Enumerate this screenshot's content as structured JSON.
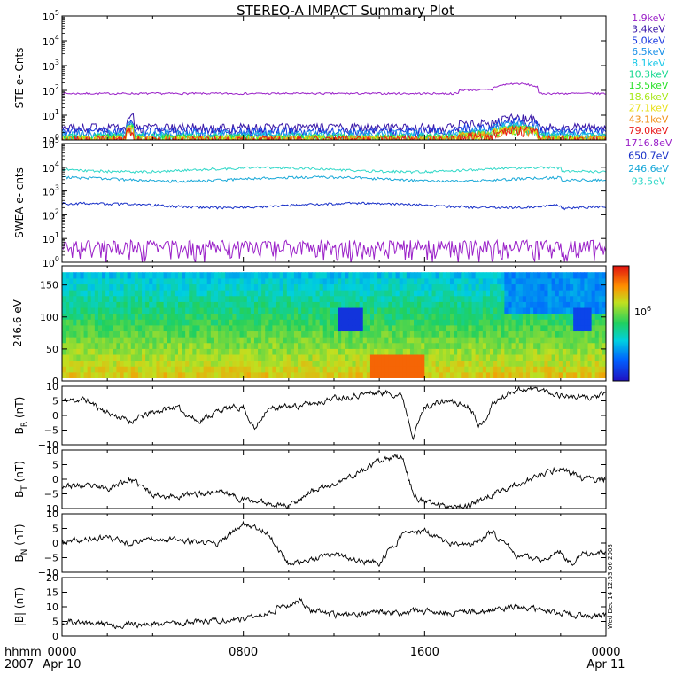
{
  "chart_data": {
    "type": "line",
    "title": "STEREO-A IMPACT Summary Plot",
    "footer": {
      "hhmm_label": "hhmm",
      "year_label": "2007",
      "stamp": "Wed Dec 14 12:53:06 2008"
    },
    "time_axis": {
      "range_hours": [
        0,
        24
      ],
      "ticks": [
        {
          "hour": 0,
          "label": "0000",
          "sublabel": "Apr 10"
        },
        {
          "hour": 8,
          "label": "0800",
          "sublabel": ""
        },
        {
          "hour": 16,
          "label": "1600",
          "sublabel": ""
        },
        {
          "hour": 24,
          "label": "0000",
          "sublabel": "Apr 11"
        }
      ]
    },
    "panels": [
      {
        "id": "ste",
        "type": "line",
        "ylabel": "STE e- Cnts",
        "scale": "log",
        "ylim": [
          1,
          100000
        ],
        "ticks": [
          {
            "v": 1,
            "base": "10",
            "exp": "0"
          },
          {
            "v": 10,
            "base": "10",
            "exp": "1"
          },
          {
            "v": 100,
            "base": "10",
            "exp": "2"
          },
          {
            "v": 1000,
            "base": "10",
            "exp": "3"
          },
          {
            "v": 10000,
            "base": "10",
            "exp": "4"
          },
          {
            "v": 100000,
            "base": "10",
            "exp": "5"
          }
        ],
        "series": [
          {
            "name": "1.9keV",
            "color": "#9a20c8",
            "level": 75
          },
          {
            "name": "3.4keV",
            "color": "#3a18a8",
            "level": 3.2
          },
          {
            "name": "5.0keV",
            "color": "#1838e0",
            "level": 2.2
          },
          {
            "name": "6.5keV",
            "color": "#1890e8",
            "level": 1.7
          },
          {
            "name": "8.1keV",
            "color": "#18c8e8",
            "level": 1.4
          },
          {
            "name": "10.3keV",
            "color": "#18d890",
            "level": 1.25
          },
          {
            "name": "13.5keV",
            "color": "#28e028",
            "level": 1.15
          },
          {
            "name": "18.6keV",
            "color": "#a8e818",
            "level": 1.1
          },
          {
            "name": "27.1keV",
            "color": "#e8e018",
            "level": 1.06
          },
          {
            "name": "43.1keV",
            "color": "#f09018",
            "level": 1.03
          },
          {
            "name": "79.0keV",
            "color": "#e81818",
            "level": 1.01
          }
        ]
      },
      {
        "id": "swea",
        "type": "line",
        "ylabel": "SWEA e- cnts",
        "scale": "log",
        "ylim": [
          1,
          100000
        ],
        "ticks": [
          {
            "v": 1,
            "base": "10",
            "exp": "0"
          },
          {
            "v": 10,
            "base": "10",
            "exp": "1"
          },
          {
            "v": 100,
            "base": "10",
            "exp": "2"
          },
          {
            "v": 1000,
            "base": "10",
            "exp": "3"
          },
          {
            "v": 10000,
            "base": "10",
            "exp": "4"
          },
          {
            "v": 100000,
            "base": "10",
            "exp": "5"
          }
        ],
        "series": [
          {
            "name": "1716.8eV",
            "color": "#9a20c8",
            "level": 3
          },
          {
            "name": "650.7eV",
            "color": "#1830c8",
            "level": 250
          },
          {
            "name": "246.6eV",
            "color": "#18a8d8",
            "level": 3200
          },
          {
            "name": "93.5eV",
            "color": "#30d8c8",
            "level": 8000
          }
        ]
      },
      {
        "id": "pad",
        "type": "heatmap",
        "ylabel": "246.6 eV",
        "scale": "linear",
        "ylim": [
          0,
          180
        ],
        "ticks": [
          {
            "v": 0,
            "label": "0"
          },
          {
            "v": 50,
            "label": "50"
          },
          {
            "v": 100,
            "label": "100"
          },
          {
            "v": 150,
            "label": "150"
          }
        ],
        "colorbar": {
          "label_base": "10",
          "label_exp": "6",
          "label_value": 1000000
        }
      },
      {
        "id": "br",
        "type": "line",
        "ylabel_main": "B",
        "ylabel_sub": "R",
        "ylabel_unit": " (nT)",
        "scale": "linear",
        "ylim": [
          -10,
          10
        ],
        "ticks": [
          {
            "v": -10,
            "label": "−10"
          },
          {
            "v": -5,
            "label": "−5"
          },
          {
            "v": 0,
            "label": "0"
          },
          {
            "v": 5,
            "label": "5"
          },
          {
            "v": 10,
            "label": "10"
          }
        ],
        "keypoints": [
          [
            0,
            5
          ],
          [
            1,
            5.5
          ],
          [
            2,
            1
          ],
          [
            3,
            -2
          ],
          [
            4,
            1
          ],
          [
            5,
            3
          ],
          [
            6,
            -2
          ],
          [
            7,
            2
          ],
          [
            8,
            3
          ],
          [
            8.5,
            -5
          ],
          [
            9,
            2
          ],
          [
            10,
            3
          ],
          [
            11,
            4
          ],
          [
            12,
            6
          ],
          [
            13,
            7
          ],
          [
            14,
            8
          ],
          [
            15,
            7
          ],
          [
            15.5,
            -7
          ],
          [
            16,
            3
          ],
          [
            17,
            5
          ],
          [
            18,
            3
          ],
          [
            18.5,
            -4
          ],
          [
            19,
            4
          ],
          [
            20,
            9
          ],
          [
            21,
            9
          ],
          [
            22,
            7
          ],
          [
            23,
            6
          ],
          [
            24,
            7
          ]
        ],
        "seed": 11
      },
      {
        "id": "bt",
        "type": "line",
        "ylabel_main": "B",
        "ylabel_sub": "T",
        "ylabel_unit": " (nT)",
        "scale": "linear",
        "ylim": [
          -10,
          10
        ],
        "ticks": [
          {
            "v": -10,
            "label": "−10"
          },
          {
            "v": -5,
            "label": "−5"
          },
          {
            "v": 0,
            "label": "0"
          },
          {
            "v": 5,
            "label": "5"
          },
          {
            "v": 10,
            "label": "10"
          }
        ],
        "keypoints": [
          [
            0,
            -2
          ],
          [
            2,
            -3
          ],
          [
            3,
            0
          ],
          [
            4,
            -5
          ],
          [
            5,
            -6
          ],
          [
            6,
            -5
          ],
          [
            7,
            -4
          ],
          [
            8,
            -7
          ],
          [
            9,
            -8
          ],
          [
            10,
            -9
          ],
          [
            11,
            -4
          ],
          [
            12,
            -2
          ],
          [
            13,
            2
          ],
          [
            14,
            6
          ],
          [
            15,
            8
          ],
          [
            15.5,
            -5
          ],
          [
            16,
            -8
          ],
          [
            17,
            -9
          ],
          [
            18,
            -9
          ],
          [
            19,
            -5
          ],
          [
            20,
            -2
          ],
          [
            21,
            1
          ],
          [
            22,
            4
          ],
          [
            23,
            0
          ],
          [
            24,
            0
          ]
        ],
        "seed": 23
      },
      {
        "id": "bn",
        "type": "line",
        "ylabel_main": "B",
        "ylabel_sub": "N",
        "ylabel_unit": " (nT)",
        "scale": "linear",
        "ylim": [
          -10,
          10
        ],
        "ticks": [
          {
            "v": -10,
            "label": "−10"
          },
          {
            "v": -5,
            "label": "−5"
          },
          {
            "v": 0,
            "label": "0"
          },
          {
            "v": 5,
            "label": "5"
          },
          {
            "v": 10,
            "label": "10"
          }
        ],
        "keypoints": [
          [
            0,
            0
          ],
          [
            2,
            2
          ],
          [
            3,
            0
          ],
          [
            4,
            2
          ],
          [
            6,
            0
          ],
          [
            7,
            0
          ],
          [
            8,
            7
          ],
          [
            9,
            4
          ],
          [
            10,
            -7
          ],
          [
            11,
            -6
          ],
          [
            12,
            -4
          ],
          [
            13,
            -6
          ],
          [
            14,
            -7
          ],
          [
            15,
            3
          ],
          [
            16,
            4
          ],
          [
            17,
            0
          ],
          [
            18,
            -1
          ],
          [
            19,
            4
          ],
          [
            20,
            -4
          ],
          [
            21,
            -6
          ],
          [
            22,
            -3
          ],
          [
            22.5,
            -7
          ],
          [
            23,
            -4
          ],
          [
            24,
            -3
          ]
        ],
        "seed": 37
      },
      {
        "id": "bmag",
        "type": "line",
        "ylabel_main": "|B| (nT)",
        "scale": "linear",
        "ylim": [
          0,
          20
        ],
        "ticks": [
          {
            "v": 0,
            "label": "0"
          },
          {
            "v": 5,
            "label": "5"
          },
          {
            "v": 10,
            "label": "10"
          },
          {
            "v": 15,
            "label": "15"
          },
          {
            "v": 20,
            "label": "20"
          }
        ],
        "keypoints": [
          [
            0,
            5
          ],
          [
            2,
            4
          ],
          [
            4,
            4
          ],
          [
            6,
            5
          ],
          [
            8,
            6
          ],
          [
            9,
            8
          ],
          [
            10,
            11
          ],
          [
            10.5,
            12
          ],
          [
            11,
            9
          ],
          [
            12,
            7
          ],
          [
            14,
            8
          ],
          [
            15,
            8
          ],
          [
            16,
            8.5
          ],
          [
            17,
            8
          ],
          [
            18,
            8.5
          ],
          [
            19,
            9
          ],
          [
            20,
            10
          ],
          [
            21,
            9
          ],
          [
            22,
            8
          ],
          [
            23,
            7
          ],
          [
            24,
            7
          ]
        ],
        "seed": 51
      }
    ]
  }
}
